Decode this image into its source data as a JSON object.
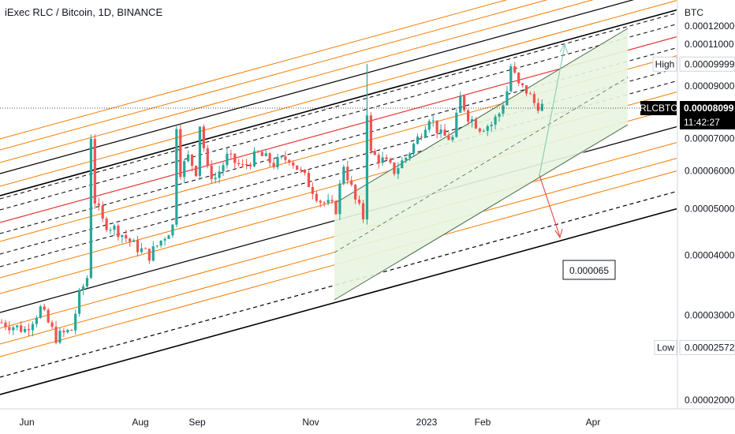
{
  "chart_title": "iExec RLC / Bitcoin, 1D, BINANCE",
  "colors": {
    "up": "#26a69a",
    "down": "#ef5350",
    "orange": "#f57c00",
    "red": "#e53935",
    "black": "#000000",
    "channel_fill": "#e8f5e0",
    "channel_edge": "#4b6b4f",
    "arrow_up": "#8ecfb5",
    "arrow_down": "#ef5350"
  },
  "chart_data": {
    "type": "candlestick",
    "symbol": "RLCBTC",
    "timeframe": "1D",
    "exchange": "BINANCE",
    "y_unit": "BTC",
    "ylim": [
      1.9e-05,
      1.23e-05
    ],
    "y_scale": "log",
    "y_ticks": [
      "0.00012000",
      "0.00011000",
      "0.00010000",
      "0.00009000",
      "0.00008000",
      "0.00007000",
      "0.00006000",
      "0.00005000",
      "0.00004000",
      "0.00003000",
      "0.00002000"
    ],
    "x_ticks": [
      "Jun",
      "Aug",
      "Sep",
      "Nov",
      "2023",
      "Feb",
      "Apr"
    ],
    "last_price": "0.00008099",
    "countdown": "11:42:27",
    "high_label": "High",
    "high_value": "0.00009999",
    "low_label": "Low",
    "low_value": "0.00002572",
    "annotation": "0.000065",
    "price_path": [
      [
        2.9e-05,
        0
      ],
      [
        2.8e-05,
        6
      ],
      [
        3.1e-05,
        10
      ],
      [
        2.7e-05,
        14
      ],
      [
        2.8e-05,
        18
      ],
      [
        3.3e-05,
        20
      ],
      [
        3.6e-05,
        22
      ],
      [
        7.1e-05,
        23
      ],
      [
        5.2e-05,
        24
      ],
      [
        4.7e-05,
        26
      ],
      [
        4.5e-05,
        30
      ],
      [
        4.2e-05,
        34
      ],
      [
        4e-05,
        38
      ],
      [
        4.4e-05,
        42
      ],
      [
        4.6e-05,
        44
      ],
      [
        7.5e-05,
        45
      ],
      [
        6e-05,
        46
      ],
      [
        6.4e-05,
        48
      ],
      [
        6e-05,
        50
      ],
      [
        7.5e-05,
        51
      ],
      [
        6e-05,
        53
      ],
      [
        5.8e-05,
        55
      ],
      [
        6.4e-05,
        58
      ],
      [
        6.1e-05,
        62
      ],
      [
        6.5e-05,
        66
      ],
      [
        6.2e-05,
        70
      ],
      [
        6.4e-05,
        74
      ],
      [
        5.8e-05,
        78
      ],
      [
        5.2e-05,
        82
      ],
      [
        5e-05,
        86
      ],
      [
        6.2e-05,
        88
      ],
      [
        5.2e-05,
        91
      ],
      [
        4.8e-05,
        93
      ],
      [
        8e-05,
        94
      ],
      [
        6.5e-05,
        95
      ],
      [
        6.3e-05,
        98
      ],
      [
        6e-05,
        101
      ],
      [
        6.4e-05,
        104
      ],
      [
        7e-05,
        107
      ],
      [
        7.8e-05,
        110
      ],
      [
        7.1e-05,
        113
      ],
      [
        7e-05,
        116
      ],
      [
        8.5e-05,
        118
      ],
      [
        7.8e-05,
        120
      ],
      [
        7.4e-05,
        123
      ],
      [
        7.5e-05,
        126
      ],
      [
        7.9e-05,
        128
      ],
      [
        8.8e-05,
        130
      ],
      [
        9.9e-05,
        131
      ],
      [
        9e-05,
        133
      ],
      [
        8.8e-05,
        135
      ],
      [
        8.3e-05,
        137
      ],
      [
        8.1e-05,
        140
      ]
    ]
  }
}
